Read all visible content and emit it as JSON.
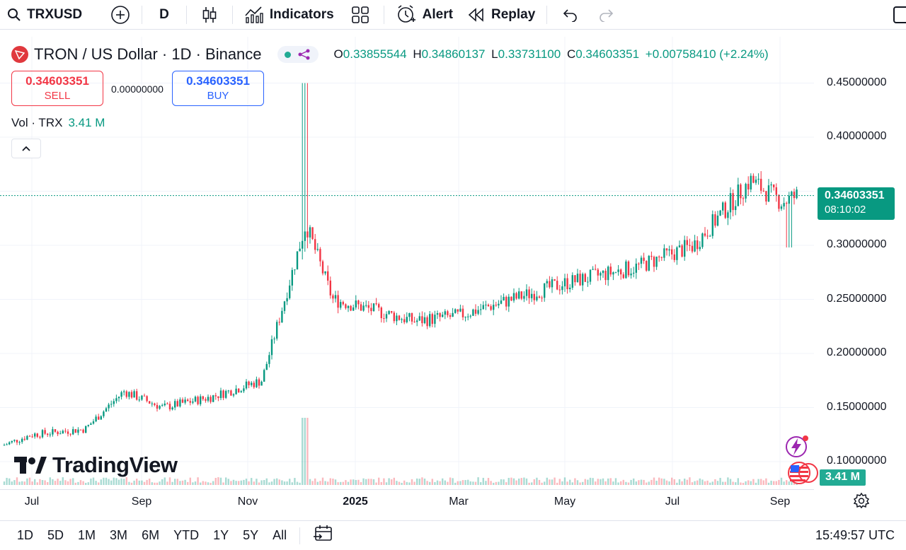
{
  "toolbar": {
    "symbol": "TRXUSD",
    "interval": "D",
    "indicators_label": "Indicators",
    "alert_label": "Alert",
    "replay_label": "Replay"
  },
  "legend": {
    "title": "TRON / US Dollar · 1D · Binance",
    "open_label": "O",
    "open": "0.33855544",
    "high_label": "H",
    "high": "0.34860137",
    "low_label": "L",
    "low": "0.33731100",
    "close_label": "C",
    "close": "0.34603351",
    "change": "+0.00758410 (+2.24%)"
  },
  "trade": {
    "sell_price": "0.34603351",
    "sell_label": "SELL",
    "spread": "0.00000000",
    "buy_price": "0.34603351",
    "buy_label": "BUY"
  },
  "volume": {
    "label": "Vol · TRX",
    "value": "3.41 M"
  },
  "price_axis": [
    "0.45000000",
    "0.40000000",
    "0.30000000",
    "0.25000000",
    "0.20000000",
    "0.15000000",
    "0.10000000"
  ],
  "current_price": {
    "price": "0.34603351",
    "countdown": "08:10:02"
  },
  "volume_tag": "3.41 M",
  "time_axis": [
    "Jul",
    "Sep",
    "Nov",
    "2025",
    "Mar",
    "May",
    "Jul",
    "Sep"
  ],
  "brand": "TradingView",
  "range_buttons": [
    "1D",
    "5D",
    "1M",
    "3M",
    "6M",
    "YTD",
    "1Y",
    "5Y",
    "All"
  ],
  "clock": "15:49:57 UTC",
  "colors": {
    "up": "#089981",
    "down": "#f23645",
    "accent": "#2962ff"
  },
  "chart_data": {
    "type": "candlestick",
    "symbol": "TRXUSD",
    "interval": "1D",
    "ylim": [
      0.08,
      0.46
    ],
    "x_ticks": [
      "Jul",
      "Sep",
      "Nov",
      "2025",
      "Mar",
      "May",
      "Jul",
      "Sep"
    ],
    "anchors": [
      {
        "x": "Jun 2024",
        "close": 0.115
      },
      {
        "x": "Jul 2024",
        "close": 0.125
      },
      {
        "x": "Aug 2024",
        "close": 0.13
      },
      {
        "x": "Aug 2024 (late)",
        "close": 0.165
      },
      {
        "x": "Sep 2024",
        "close": 0.15
      },
      {
        "x": "Oct 2024",
        "close": 0.16
      },
      {
        "x": "Nov 2024",
        "close": 0.175
      },
      {
        "x": "Dec 2024 (peak)",
        "high": 0.45,
        "close": 0.32
      },
      {
        "x": "Dec 2024 (late)",
        "close": 0.25
      },
      {
        "x": "Feb 2025",
        "close": 0.23
      },
      {
        "x": "Mar 2025",
        "close": 0.235
      },
      {
        "x": "May 2025",
        "close": 0.265
      },
      {
        "x": "Jun 2025",
        "close": 0.28
      },
      {
        "x": "Jul 2025",
        "close": 0.3
      },
      {
        "x": "Aug 2025",
        "close": 0.36
      },
      {
        "x": "Sep 2025",
        "close": 0.34
      },
      {
        "x": "Sep 2025 (last)",
        "open": 0.33855544,
        "high": 0.34860137,
        "low": 0.337311,
        "close": 0.34603351
      }
    ]
  }
}
